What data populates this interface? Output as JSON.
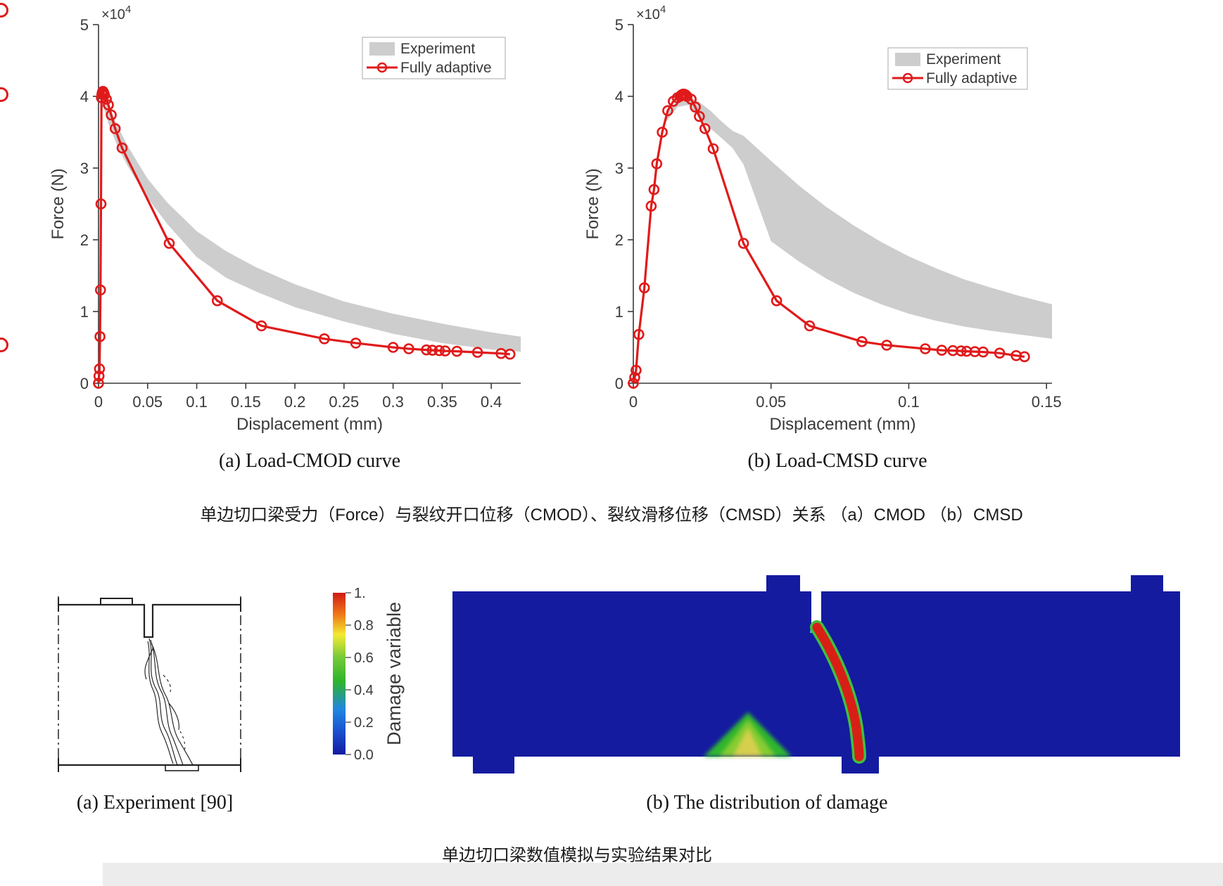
{
  "colors": {
    "line_red": "#e01a1a",
    "band_gray": "#cdcdcd",
    "beam_blue": "#141b9f",
    "crack_red": "#d81f16",
    "crack_green": "#3fc13f",
    "axis_gray": "#3a3a3a"
  },
  "chart_data": [
    {
      "type": "line",
      "title": "(a) Load-CMOD curve",
      "xlabel": "Displacement (mm)",
      "ylabel": "Force (N)",
      "y_exp_base": "×10",
      "y_exp_sup": "4",
      "xlim": [
        0,
        0.43
      ],
      "ylim": [
        0,
        5
      ],
      "xticks": [
        "0",
        "0.05",
        "0.1",
        "0.15",
        "0.2",
        "0.25",
        "0.3",
        "0.35",
        "0.4"
      ],
      "xtick_vals": [
        0,
        0.05,
        0.1,
        0.15,
        0.2,
        0.25,
        0.3,
        0.35,
        0.4
      ],
      "yticks": [
        "0",
        "1",
        "2",
        "3",
        "4",
        "5"
      ],
      "ytick_vals": [
        0,
        1,
        2,
        3,
        4,
        5
      ],
      "legend": [
        "Experiment",
        "Fully adaptive"
      ],
      "legend_position": "top-right",
      "grid": false,
      "y_units": "1e4 N",
      "series": [
        {
          "name": "Experiment",
          "type": "band",
          "color": "#cdcdcd",
          "x": [
            0.002,
            0.005,
            0.01,
            0.02,
            0.03,
            0.05,
            0.07,
            0.1,
            0.13,
            0.16,
            0.2,
            0.25,
            0.3,
            0.35,
            0.4,
            0.43
          ],
          "upper": [
            3.9,
            4.0,
            3.88,
            3.57,
            3.3,
            2.85,
            2.52,
            2.12,
            1.84,
            1.62,
            1.38,
            1.14,
            0.97,
            0.83,
            0.71,
            0.65
          ],
          "lower": [
            3.78,
            3.86,
            3.62,
            3.28,
            3.02,
            2.58,
            2.22,
            1.76,
            1.47,
            1.28,
            1.06,
            0.86,
            0.69,
            0.56,
            0.47,
            0.44
          ]
        },
        {
          "name": "Fully adaptive",
          "type": "line-marker",
          "color": "#e01a1a",
          "x": [
            0,
            0.0005,
            0.001,
            0.0015,
            0.002,
            0.0025,
            0.003,
            0.0035,
            0.004,
            0.0045,
            0.005,
            0.0055,
            0.006,
            0.008,
            0.01,
            0.013,
            0.017,
            0.024,
            0.072,
            0.121,
            0.166,
            0.23,
            0.262,
            0.3,
            0.316,
            0.334,
            0.34,
            0.347,
            0.353,
            0.365,
            0.386,
            0.41,
            0.419
          ],
          "y": [
            0,
            0.1,
            0.2,
            0.65,
            1.3,
            2.5,
            3.98,
            4.03,
            4.06,
            4.07,
            4.06,
            4.04,
            4.02,
            3.96,
            3.88,
            3.74,
            3.55,
            3.28,
            1.95,
            1.15,
            0.8,
            0.62,
            0.56,
            0.5,
            0.48,
            0.465,
            0.46,
            0.455,
            0.45,
            0.445,
            0.43,
            0.415,
            0.405
          ]
        }
      ]
    },
    {
      "type": "line",
      "title": "(b) Load-CMSD curve",
      "xlabel": "Displacement (mm)",
      "ylabel": "Force (N)",
      "y_exp_base": "×10",
      "y_exp_sup": "4",
      "xlim": [
        0,
        0.152
      ],
      "ylim": [
        0,
        5
      ],
      "xticks": [
        "0",
        "0.05",
        "0.1",
        "0.15"
      ],
      "xtick_vals": [
        0,
        0.05,
        0.1,
        0.15
      ],
      "yticks": [
        "0",
        "1",
        "2",
        "3",
        "4",
        "5"
      ],
      "ytick_vals": [
        0,
        1,
        2,
        3,
        4,
        5
      ],
      "legend": [
        "Experiment",
        "Fully adaptive"
      ],
      "legend_position": "top-right",
      "grid": false,
      "y_units": "1e4 N",
      "series": [
        {
          "name": "Experiment",
          "type": "band",
          "color": "#cdcdcd",
          "x": [
            0.012,
            0.016,
            0.02,
            0.024,
            0.028,
            0.032,
            0.036,
            0.04,
            0.05,
            0.06,
            0.07,
            0.08,
            0.09,
            0.1,
            0.11,
            0.12,
            0.13,
            0.14,
            0.152
          ],
          "upper": [
            3.75,
            3.95,
            4.0,
            3.92,
            3.8,
            3.65,
            3.52,
            3.45,
            3.1,
            2.76,
            2.46,
            2.2,
            1.97,
            1.77,
            1.6,
            1.45,
            1.33,
            1.22,
            1.1
          ],
          "lower": [
            3.65,
            3.85,
            3.88,
            3.7,
            3.55,
            3.42,
            3.28,
            3.05,
            1.98,
            1.7,
            1.46,
            1.26,
            1.1,
            0.97,
            0.87,
            0.79,
            0.73,
            0.68,
            0.62
          ]
        },
        {
          "name": "Fully adaptive",
          "type": "line-marker",
          "color": "#e01a1a",
          "x": [
            0,
            0.0005,
            0.001,
            0.002,
            0.004,
            0.0065,
            0.0075,
            0.0085,
            0.0105,
            0.0125,
            0.0145,
            0.016,
            0.017,
            0.0175,
            0.018,
            0.0185,
            0.019,
            0.0195,
            0.021,
            0.0225,
            0.024,
            0.026,
            0.029,
            0.04,
            0.052,
            0.064,
            0.083,
            0.092,
            0.106,
            0.112,
            0.116,
            0.119,
            0.121,
            0.124,
            0.127,
            0.133,
            0.139,
            0.142
          ],
          "y": [
            0,
            0.08,
            0.18,
            0.68,
            1.33,
            2.47,
            2.7,
            3.06,
            3.5,
            3.8,
            3.93,
            3.98,
            4.0,
            4.02,
            4.03,
            4.03,
            4.02,
            4.0,
            3.96,
            3.85,
            3.72,
            3.55,
            3.27,
            1.95,
            1.15,
            0.8,
            0.58,
            0.53,
            0.48,
            0.46,
            0.455,
            0.45,
            0.445,
            0.44,
            0.435,
            0.42,
            0.385,
            0.37
          ]
        }
      ]
    }
  ],
  "captions": {
    "figure1_zh": "单边切口梁受力（Force）与裂纹开口位移（CMOD）、裂纹滑移位移（CMSD）关系 （a）CMOD （b）CMSD",
    "photo": "(a) Experiment [90]",
    "damage": "(b) The distribution of damage",
    "figure2_zh": "单边切口梁数值模拟与实验结果对比"
  },
  "colorbar": {
    "label": "Damage variable",
    "ticks": [
      "1.",
      "0.8",
      "0.6",
      "0.4",
      "0.2",
      "0.0"
    ],
    "tick_vals": [
      1.0,
      0.8,
      0.6,
      0.4,
      0.2,
      0.0
    ],
    "gradient": [
      {
        "o": 0,
        "c": "#d01b15"
      },
      {
        "o": 0.13,
        "c": "#ee7417"
      },
      {
        "o": 0.26,
        "c": "#f3ea33"
      },
      {
        "o": 0.4,
        "c": "#76ca36"
      },
      {
        "o": 0.55,
        "c": "#2db32d"
      },
      {
        "o": 0.72,
        "c": "#1e87e0"
      },
      {
        "o": 0.86,
        "c": "#1a4fd0"
      },
      {
        "o": 1,
        "c": "#141b9f"
      }
    ]
  }
}
